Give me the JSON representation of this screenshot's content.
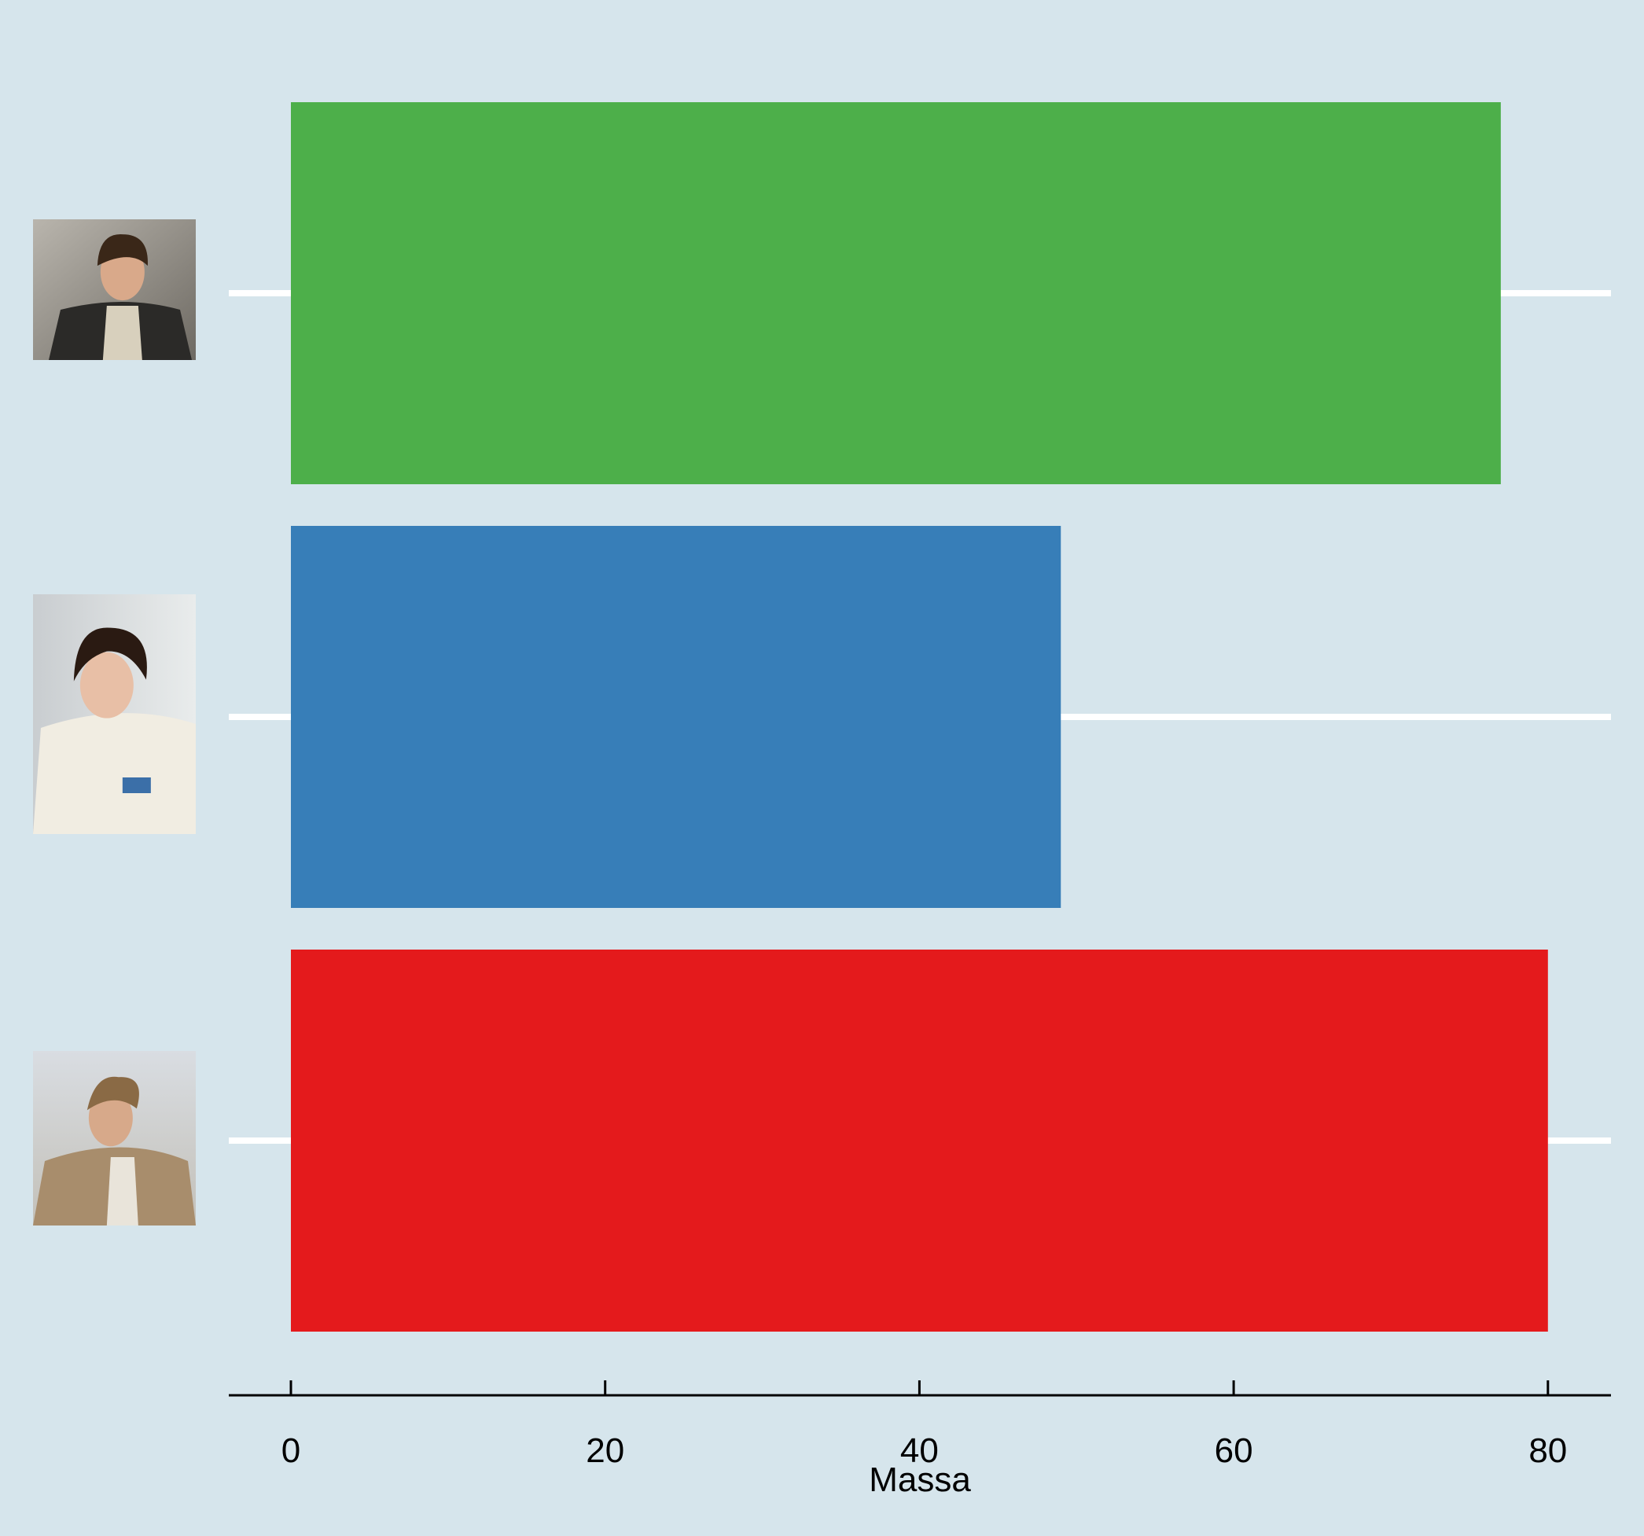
{
  "background": "#d6e5ec",
  "chart_data": {
    "type": "bar",
    "orientation": "horizontal",
    "title": "",
    "xlabel": "Massa",
    "ylabel": "",
    "xlim": [
      -4,
      84
    ],
    "xticks": [
      "0",
      "20",
      "40",
      "60",
      "80"
    ],
    "xtick_values": [
      0,
      20,
      40,
      60,
      80
    ],
    "grid": "horizontal lines at each category, white",
    "legend": "none",
    "categories": [
      {
        "id": "han",
        "icon": "portrait-photo-man-dark-vest",
        "value": 77,
        "color": "#4daf4a"
      },
      {
        "id": "leia",
        "icon": "portrait-photo-woman-white-jacket",
        "value": 49,
        "color": "#377eb8"
      },
      {
        "id": "luke",
        "icon": "portrait-photo-man-desert-robe",
        "value": 80,
        "color": "#e41a1c"
      }
    ]
  }
}
